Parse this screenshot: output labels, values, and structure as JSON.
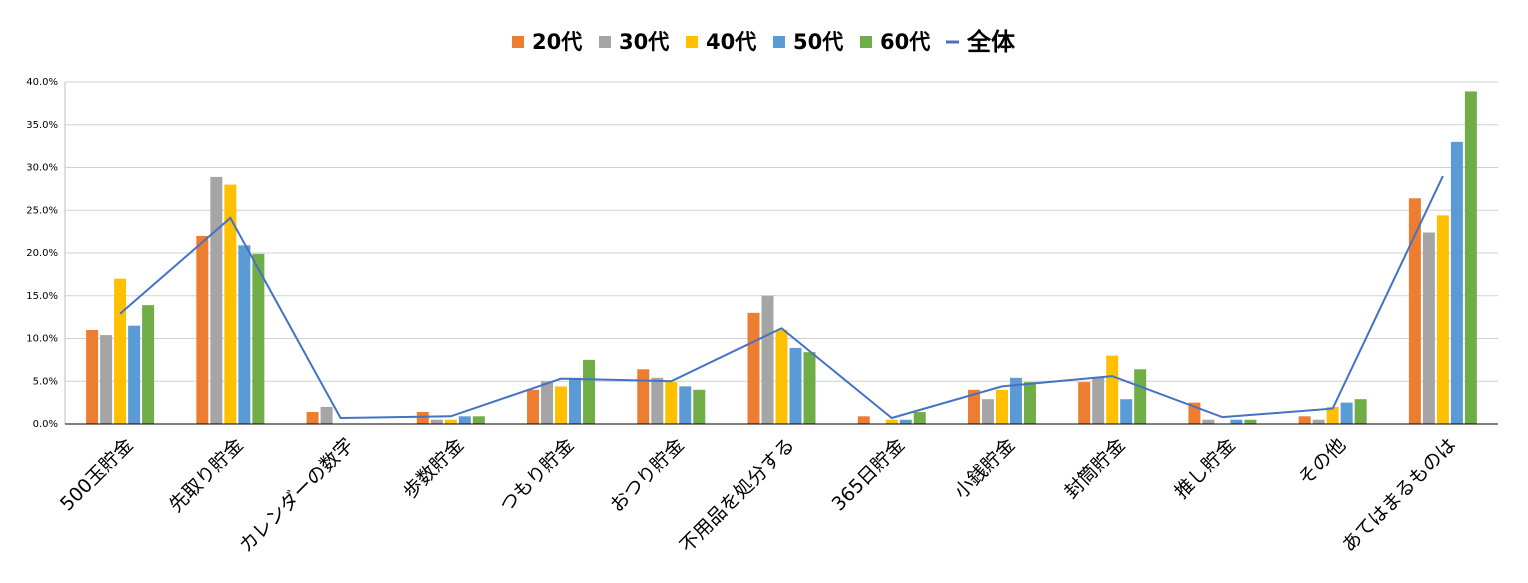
{
  "chart_data": {
    "type": "bar_line",
    "categories": [
      "500玉貯金",
      "先取り貯金",
      "カレンダーの数字",
      "歩数貯金",
      "つもり貯金",
      "おつり貯金",
      "不用品を処分する",
      "365日貯金",
      "小銭貯金",
      "封筒貯金",
      "推し貯金",
      "その他",
      "あてはまるものは"
    ],
    "series": [
      {
        "name": "20代",
        "color": "#ed7d31",
        "type": "bar",
        "values": [
          11.0,
          22.0,
          1.4,
          1.4,
          4.0,
          6.4,
          13.0,
          0.9,
          4.0,
          4.9,
          2.5,
          0.9,
          26.4
        ]
      },
      {
        "name": "30代",
        "color": "#a5a5a5",
        "type": "bar",
        "values": [
          10.4,
          28.9,
          2.0,
          0.5,
          5.0,
          5.4,
          15.0,
          0,
          2.9,
          5.4,
          0.5,
          0.5,
          22.4
        ]
      },
      {
        "name": "40代",
        "color": "#ffc000",
        "type": "bar",
        "values": [
          17.0,
          28.0,
          0,
          0.5,
          4.4,
          4.9,
          11.0,
          0.5,
          4.0,
          8.0,
          0,
          2.0,
          24.4
        ]
      },
      {
        "name": "50代",
        "color": "#5b9bd5",
        "type": "bar",
        "values": [
          11.5,
          20.9,
          0,
          0.9,
          5.4,
          4.4,
          8.9,
          0.5,
          5.4,
          2.9,
          0.5,
          2.5,
          33.0
        ]
      },
      {
        "name": "60代",
        "color": "#70ad47",
        "type": "bar",
        "values": [
          13.9,
          19.9,
          0,
          0.9,
          7.5,
          4.0,
          8.4,
          1.4,
          4.9,
          6.4,
          0.5,
          2.9,
          38.9
        ]
      },
      {
        "name": "全体",
        "color": "#4472c4",
        "type": "line",
        "values": [
          12.9,
          24.1,
          0.7,
          0.9,
          5.3,
          5.0,
          11.2,
          0.7,
          4.4,
          5.6,
          0.8,
          1.8,
          29.0
        ]
      }
    ],
    "ylim": [
      0,
      40
    ],
    "yticks": [
      {
        "value": 0,
        "label": "0.0%"
      },
      {
        "value": 5,
        "label": "5.0%"
      },
      {
        "value": 10,
        "label": "10.0%"
      },
      {
        "value": 15,
        "label": "15.0%"
      },
      {
        "value": 20,
        "label": "20.0%"
      },
      {
        "value": 25,
        "label": "25.0%"
      },
      {
        "value": 30,
        "label": "30.0%"
      },
      {
        "value": 35,
        "label": "35.0%"
      },
      {
        "value": 40,
        "label": "40.0%"
      }
    ],
    "grid": true,
    "legend": "top"
  }
}
